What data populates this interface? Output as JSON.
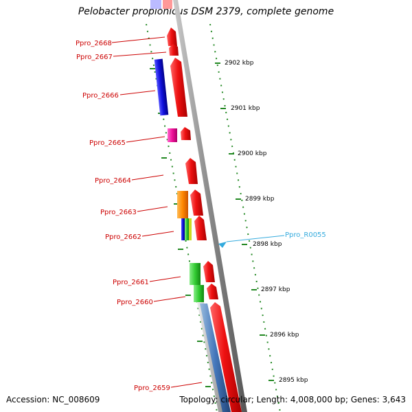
{
  "title": "Pelobacter propionicus DSM 2379, complete genome",
  "footer": {
    "accession": "Accession: NC_008609",
    "summary": "Topology: circular; Length: 4,008,000 bp; Genes: 3,643"
  },
  "colors": {
    "gene_label": "#cc0000",
    "rna_label": "#33aadd",
    "backbone": "#808080",
    "ticks": "#228822",
    "red": "#ee1111",
    "blue": "#1111dd",
    "magenta": "#ee1199",
    "orange": "#ff8800",
    "green": "#33cc33",
    "steelblue": "#4477bb"
  },
  "kbp_labels": [
    "2902 kbp",
    "2901 kbp",
    "2900 kbp",
    "2899 kbp",
    "2898 kbp",
    "2897 kbp",
    "2896 kbp",
    "2895 kbp"
  ],
  "gene_labels": [
    "Ppro_2668",
    "Ppro_2667",
    "Ppro_2666",
    "Ppro_2665",
    "Ppro_2664",
    "Ppro_2663",
    "Ppro_2662",
    "Ppro_2661",
    "Ppro_2660",
    "Ppro_2659"
  ],
  "rna_label": "Ppro_R0055"
}
